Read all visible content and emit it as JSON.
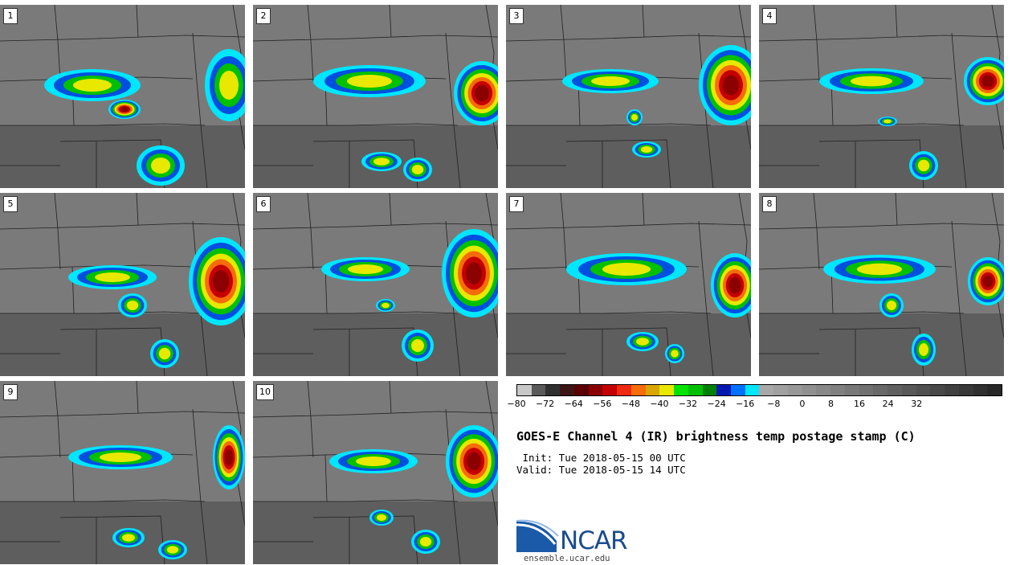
{
  "panels": [
    {
      "label": "1"
    },
    {
      "label": "2"
    },
    {
      "label": "3"
    },
    {
      "label": "4"
    },
    {
      "label": "5"
    },
    {
      "label": "6"
    },
    {
      "label": "7"
    },
    {
      "label": "8"
    },
    {
      "label": "9"
    },
    {
      "label": "10"
    }
  ],
  "colorbar": {
    "colors": [
      "#c8c8c8",
      "#5a5a5a",
      "#303030",
      "#3c1616",
      "#5a0000",
      "#8b0000",
      "#c40000",
      "#ee2a10",
      "#f76b0a",
      "#d9a600",
      "#e8e800",
      "#00e400",
      "#00c000",
      "#008000",
      "#0018b0",
      "#0070ff",
      "#00e6ff",
      "#a8a8a8",
      "#a0a0a0",
      "#989898",
      "#909090",
      "#888888",
      "#808080",
      "#787878",
      "#707070",
      "#686868",
      "#606060",
      "#585858",
      "#505050",
      "#484848",
      "#404040",
      "#383838",
      "#303030",
      "#282828"
    ],
    "ticks": [
      "−80",
      "−72",
      "−64",
      "−56",
      "−48",
      "−40",
      "−32",
      "−24",
      "−16",
      "−8",
      "0",
      "8",
      "16",
      "24",
      "32"
    ]
  },
  "title": "GOES-E Channel 4 (IR) brightness temp postage stamp (C)",
  "init": " Init: Tue 2018-05-15 00 UTC",
  "valid": "Valid: Tue 2018-05-15 14 UTC",
  "logo": {
    "name": "NCAR",
    "url": "ensemble.ucar.edu"
  }
}
